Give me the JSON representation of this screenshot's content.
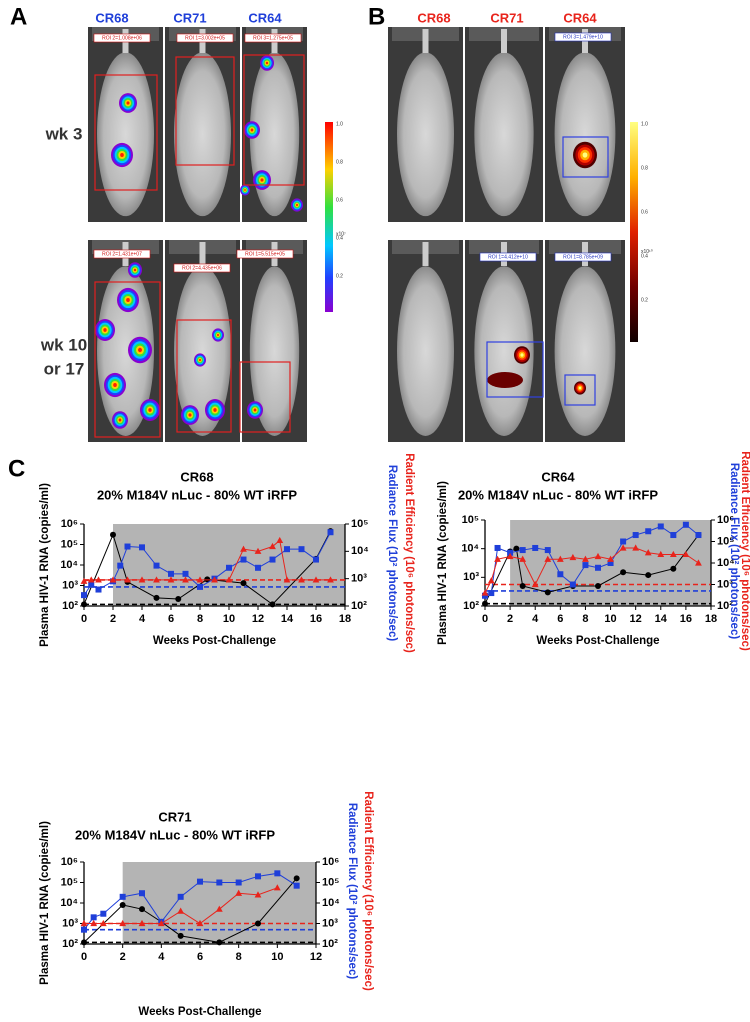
{
  "panel_letters": [
    "A",
    "B",
    "C"
  ],
  "panel_a": {
    "columns": [
      "CR68",
      "CR71",
      "CR64"
    ],
    "row_labels": [
      [
        "wk 3"
      ],
      [
        "wk 10",
        "or 17"
      ]
    ],
    "roi_labels": [
      "ROI 2=1.008e+06",
      "ROI 1=3.002e+05",
      "ROI 3=1.275e+05",
      "ROI 2=1.431e+07",
      "ROI 2=4.435e+06",
      "ROI 1=5.515e+05"
    ],
    "colorbar": {
      "ticks": [
        "1.0",
        "0.8",
        "0.6",
        "0.4",
        "0.2"
      ],
      "multiplier": "x10⁷"
    }
  },
  "panel_b": {
    "columns": [
      "CR68",
      "CR71",
      "CR64"
    ],
    "roi_labels": [
      "ROI 3=1.479e+10",
      "ROI 1=4.412e+10",
      "ROI 1=8.785e+09"
    ],
    "colorbar": {
      "ticks": [
        "1.0",
        "0.8",
        "0.6",
        "0.4",
        "0.2"
      ],
      "multiplier": "x10¹⁰"
    }
  },
  "chart_data": [
    {
      "type": "line",
      "title": "CR68",
      "subtitle": "20% M184V nLuc - 80% WT iRFP",
      "x_label": "Weeks Post-Challenge",
      "y_label": "Plasma HIV-1 RNA (copies/ml)",
      "y2_labels": [
        {
          "text": "Radiance Flux (10² photons/sec)",
          "color": "#1f3fd9"
        },
        {
          "text": "Radient Efficiency (10⁶ photons/sec)",
          "color": "#e8241c"
        }
      ],
      "log_scale": true,
      "shade_from": 2,
      "xlim": [
        0,
        18
      ],
      "xticks": [
        0,
        2,
        4,
        6,
        8,
        10,
        12,
        14,
        16,
        18
      ],
      "ylim": [
        100,
        1000000
      ],
      "yticks": [
        {
          "value": 100,
          "label": "10²"
        },
        {
          "value": 1000,
          "label": "10³"
        },
        {
          "value": 10000,
          "label": "10⁴"
        },
        {
          "value": 100000,
          "label": "10⁵"
        },
        {
          "value": 1000000,
          "label": "10⁶"
        }
      ],
      "y2lim": [
        100,
        100000
      ],
      "y2ticks": [
        {
          "value": 100,
          "label": "10²"
        },
        {
          "value": 1000,
          "label": "10³"
        },
        {
          "value": 10000,
          "label": "10⁴"
        },
        {
          "value": 100000,
          "label": "10⁵"
        }
      ],
      "reference_lines": [
        {
          "value": 120,
          "color": "#000000",
          "axis": "y"
        },
        {
          "value": 500,
          "color": "#1f3fd9",
          "axis": "y2"
        },
        {
          "value": 900,
          "color": "#e8241c",
          "axis": "y2"
        }
      ],
      "series": [
        {
          "name": "Plasma HIV-1 RNA",
          "color": "#000000",
          "marker": "circle",
          "axis": "y",
          "x": [
            0,
            2,
            3,
            5,
            6.5,
            8.5,
            11,
            13,
            16,
            17
          ],
          "values": [
            120,
            300000,
            1500,
            250,
            220,
            2000,
            1300,
            120,
            20000,
            450000
          ]
        },
        {
          "name": "Radiance Flux",
          "color": "#1f3fd9",
          "marker": "square",
          "axis": "y2",
          "x": [
            0,
            0.5,
            1,
            2,
            2.5,
            3,
            4,
            5,
            6,
            7,
            8,
            9,
            10,
            11,
            12,
            13,
            14,
            15,
            16,
            17
          ],
          "values": [
            250,
            600,
            400,
            800,
            3000,
            15000,
            14000,
            3000,
            1500,
            1500,
            500,
            1000,
            2500,
            5000,
            2500,
            5000,
            12000,
            12000,
            5000,
            50000
          ]
        },
        {
          "name": "Radient Efficiency",
          "color": "#e8241c",
          "marker": "triangle",
          "axis": "y2",
          "x": [
            0,
            0.5,
            1,
            2,
            3,
            4,
            5,
            6,
            7,
            8,
            9,
            10,
            11,
            12,
            13,
            13.5,
            14,
            15,
            16,
            17
          ],
          "values": [
            800,
            900,
            900,
            900,
            900,
            900,
            900,
            900,
            900,
            900,
            900,
            900,
            12000,
            10000,
            15000,
            25000,
            900,
            900,
            900,
            900
          ]
        }
      ]
    },
    {
      "type": "line",
      "title": "CR64",
      "subtitle": "20% M184V nLuc - 80% WT iRFP",
      "x_label": "Weeks Post-Challenge",
      "y_label": "Plasma HIV-1 RNA (copies/ml)",
      "y2_labels": [
        {
          "text": "Radiance Flux (10² photons/sec)",
          "color": "#1f3fd9"
        },
        {
          "text": "Radient Efficiency (10⁶ photons/sec)",
          "color": "#e8241c"
        }
      ],
      "log_scale": true,
      "shade_from": 2,
      "xlim": [
        0,
        18
      ],
      "xticks": [
        0,
        2,
        4,
        6,
        8,
        10,
        12,
        14,
        16,
        18
      ],
      "ylim": [
        100,
        100000
      ],
      "yticks": [
        {
          "value": 100,
          "label": "10²"
        },
        {
          "value": 1000,
          "label": "10³"
        },
        {
          "value": 10000,
          "label": "10⁴"
        },
        {
          "value": 100000,
          "label": "10⁵"
        }
      ],
      "y2lim": [
        100,
        1000000
      ],
      "y2ticks": [
        {
          "value": 100,
          "label": "10²"
        },
        {
          "value": 1000,
          "label": "10³"
        },
        {
          "value": 10000,
          "label": "10⁴"
        },
        {
          "value": 100000,
          "label": "10⁵"
        },
        {
          "value": 1000000,
          "label": "10⁶"
        }
      ],
      "reference_lines": [
        {
          "value": 120,
          "color": "#000000",
          "axis": "y"
        },
        {
          "value": 500,
          "color": "#1f3fd9",
          "axis": "y2"
        },
        {
          "value": 1000,
          "color": "#e8241c",
          "axis": "y2"
        }
      ],
      "series": [
        {
          "name": "Plasma HIV-1 RNA",
          "color": "#000000",
          "marker": "circle",
          "axis": "y",
          "x": [
            0,
            2,
            2.5,
            3,
            5,
            7,
            9,
            11,
            13,
            15,
            17
          ],
          "values": [
            120,
            8000,
            10000,
            500,
            300,
            500,
            500,
            1500,
            1200,
            2000,
            30000
          ]
        },
        {
          "name": "Radiance Flux",
          "color": "#1f3fd9",
          "marker": "square",
          "axis": "y2",
          "x": [
            0,
            0.5,
            1,
            2,
            3,
            4,
            5,
            6,
            7,
            8,
            9,
            10,
            11,
            12,
            13,
            14,
            15,
            16,
            17
          ],
          "values": [
            300,
            400,
            50000,
            30000,
            40000,
            50000,
            40000,
            3000,
            1000,
            8000,
            6000,
            10000,
            100000,
            200000,
            300000,
            500000,
            200000,
            600000,
            200000
          ]
        },
        {
          "name": "Radient Efficiency",
          "color": "#e8241c",
          "marker": "triangle",
          "axis": "y2",
          "x": [
            0,
            0.5,
            1,
            2,
            3,
            4,
            5,
            6,
            7,
            8,
            9,
            10,
            11,
            12,
            13,
            14,
            15,
            16,
            17
          ],
          "values": [
            400,
            1500,
            15000,
            20000,
            15000,
            1000,
            15000,
            15000,
            18000,
            15000,
            20000,
            15000,
            50000,
            50000,
            30000,
            25000,
            25000,
            25000,
            10000
          ]
        }
      ]
    },
    {
      "type": "line",
      "title": "CR71",
      "subtitle": "20% M184V nLuc - 80% WT iRFP",
      "x_label": "Weeks Post-Challenge",
      "y_label": "Plasma HIV-1 RNA (copies/ml)",
      "y2_labels": [
        {
          "text": "Radiance Flux (10² photons/sec)",
          "color": "#1f3fd9"
        },
        {
          "text": "Radient Efficiency (10⁶ photons/sec)",
          "color": "#e8241c"
        }
      ],
      "log_scale": true,
      "shade_from": 2,
      "xlim": [
        0,
        12
      ],
      "xticks": [
        0,
        2,
        4,
        6,
        8,
        10,
        12
      ],
      "ylim": [
        100,
        1000000
      ],
      "yticks": [
        {
          "value": 100,
          "label": "10²"
        },
        {
          "value": 1000,
          "label": "10³"
        },
        {
          "value": 10000,
          "label": "10⁴"
        },
        {
          "value": 100000,
          "label": "10⁵"
        },
        {
          "value": 1000000,
          "label": "10⁶"
        }
      ],
      "y2lim": [
        100,
        1000000
      ],
      "y2ticks": [
        {
          "value": 100,
          "label": "10²"
        },
        {
          "value": 1000,
          "label": "10³"
        },
        {
          "value": 10000,
          "label": "10⁴"
        },
        {
          "value": 100000,
          "label": "10⁵"
        },
        {
          "value": 1000000,
          "label": "10⁶"
        }
      ],
      "reference_lines": [
        {
          "value": 120,
          "color": "#000000",
          "axis": "y"
        },
        {
          "value": 500,
          "color": "#1f3fd9",
          "axis": "y2"
        },
        {
          "value": 1000,
          "color": "#e8241c",
          "axis": "y2"
        }
      ],
      "series": [
        {
          "name": "Plasma HIV-1 RNA",
          "color": "#000000",
          "marker": "circle",
          "axis": "y",
          "x": [
            0,
            2,
            3,
            4,
            5,
            7,
            9,
            11
          ],
          "values": [
            120,
            8000,
            5000,
            1200,
            250,
            120,
            1000,
            160000
          ]
        },
        {
          "name": "Radiance Flux",
          "color": "#1f3fd9",
          "marker": "square",
          "axis": "y2",
          "x": [
            0,
            0.5,
            1,
            2,
            3,
            4,
            5,
            6,
            7,
            8,
            9,
            10,
            11
          ],
          "values": [
            500,
            2000,
            3000,
            20000,
            30000,
            1200,
            20000,
            110000,
            100000,
            100000,
            200000,
            280000,
            70000
          ]
        },
        {
          "name": "Radient Efficiency",
          "color": "#e8241c",
          "marker": "triangle",
          "axis": "y2",
          "x": [
            0,
            0.5,
            1,
            2,
            3,
            4,
            5,
            6,
            7,
            8,
            9,
            10
          ],
          "values": [
            1000,
            1000,
            1000,
            1000,
            1000,
            1000,
            4000,
            1000,
            5000,
            30000,
            25000,
            55000
          ]
        }
      ]
    }
  ]
}
